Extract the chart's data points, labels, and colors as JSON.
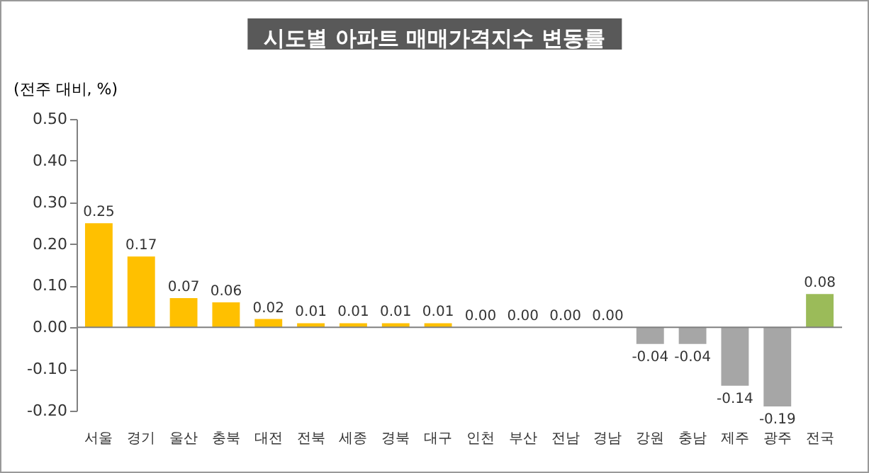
{
  "chart_data": {
    "type": "bar",
    "title": "시도별 아파트 매매가격지수 변동률",
    "ylabel": "(전주 대비, %)",
    "categories": [
      "서울",
      "경기",
      "울산",
      "충북",
      "대전",
      "전북",
      "세종",
      "경북",
      "대구",
      "인천",
      "부산",
      "전남",
      "경남",
      "강원",
      "충남",
      "제주",
      "광주",
      "전국"
    ],
    "values": [
      0.25,
      0.17,
      0.07,
      0.06,
      0.02,
      0.01,
      0.01,
      0.01,
      0.01,
      0.0,
      0.0,
      0.0,
      0.0,
      -0.04,
      -0.04,
      -0.14,
      -0.19,
      0.08
    ],
    "colors": [
      "#ffc000",
      "#ffc000",
      "#ffc000",
      "#ffc000",
      "#ffc000",
      "#ffc000",
      "#ffc000",
      "#ffc000",
      "#ffc000",
      "#ffc000",
      "#ffc000",
      "#ffc000",
      "#a6a6a6",
      "#a6a6a6",
      "#a6a6a6",
      "#a6a6a6",
      "#a6a6a6",
      "#9bbb59"
    ],
    "ylim": [
      -0.2,
      0.5
    ],
    "yticks": [
      {
        "value": 0.5,
        "label": "0.50"
      },
      {
        "value": 0.4,
        "label": "0.40"
      },
      {
        "value": 0.3,
        "label": "0.30"
      },
      {
        "value": 0.2,
        "label": "0.20"
      },
      {
        "value": 0.1,
        "label": "0.10"
      },
      {
        "value": 0,
        "label": "0.00"
      },
      {
        "value": -0.1,
        "label": "-0.10"
      },
      {
        "value": -0.2,
        "label": "-0.20"
      }
    ],
    "ref_lines": [
      {
        "axis": "y",
        "value": 0,
        "color": "#808080"
      }
    ],
    "value_labels": [
      "0.25",
      "0.17",
      "0.07",
      "0.06",
      "0.02",
      "0.01",
      "0.01",
      "0.01",
      "0.01",
      "0.00",
      "0.00",
      "0.00",
      "0.00",
      "-0.04",
      "-0.04",
      "-0.14",
      "-0.19",
      "0.08"
    ]
  }
}
